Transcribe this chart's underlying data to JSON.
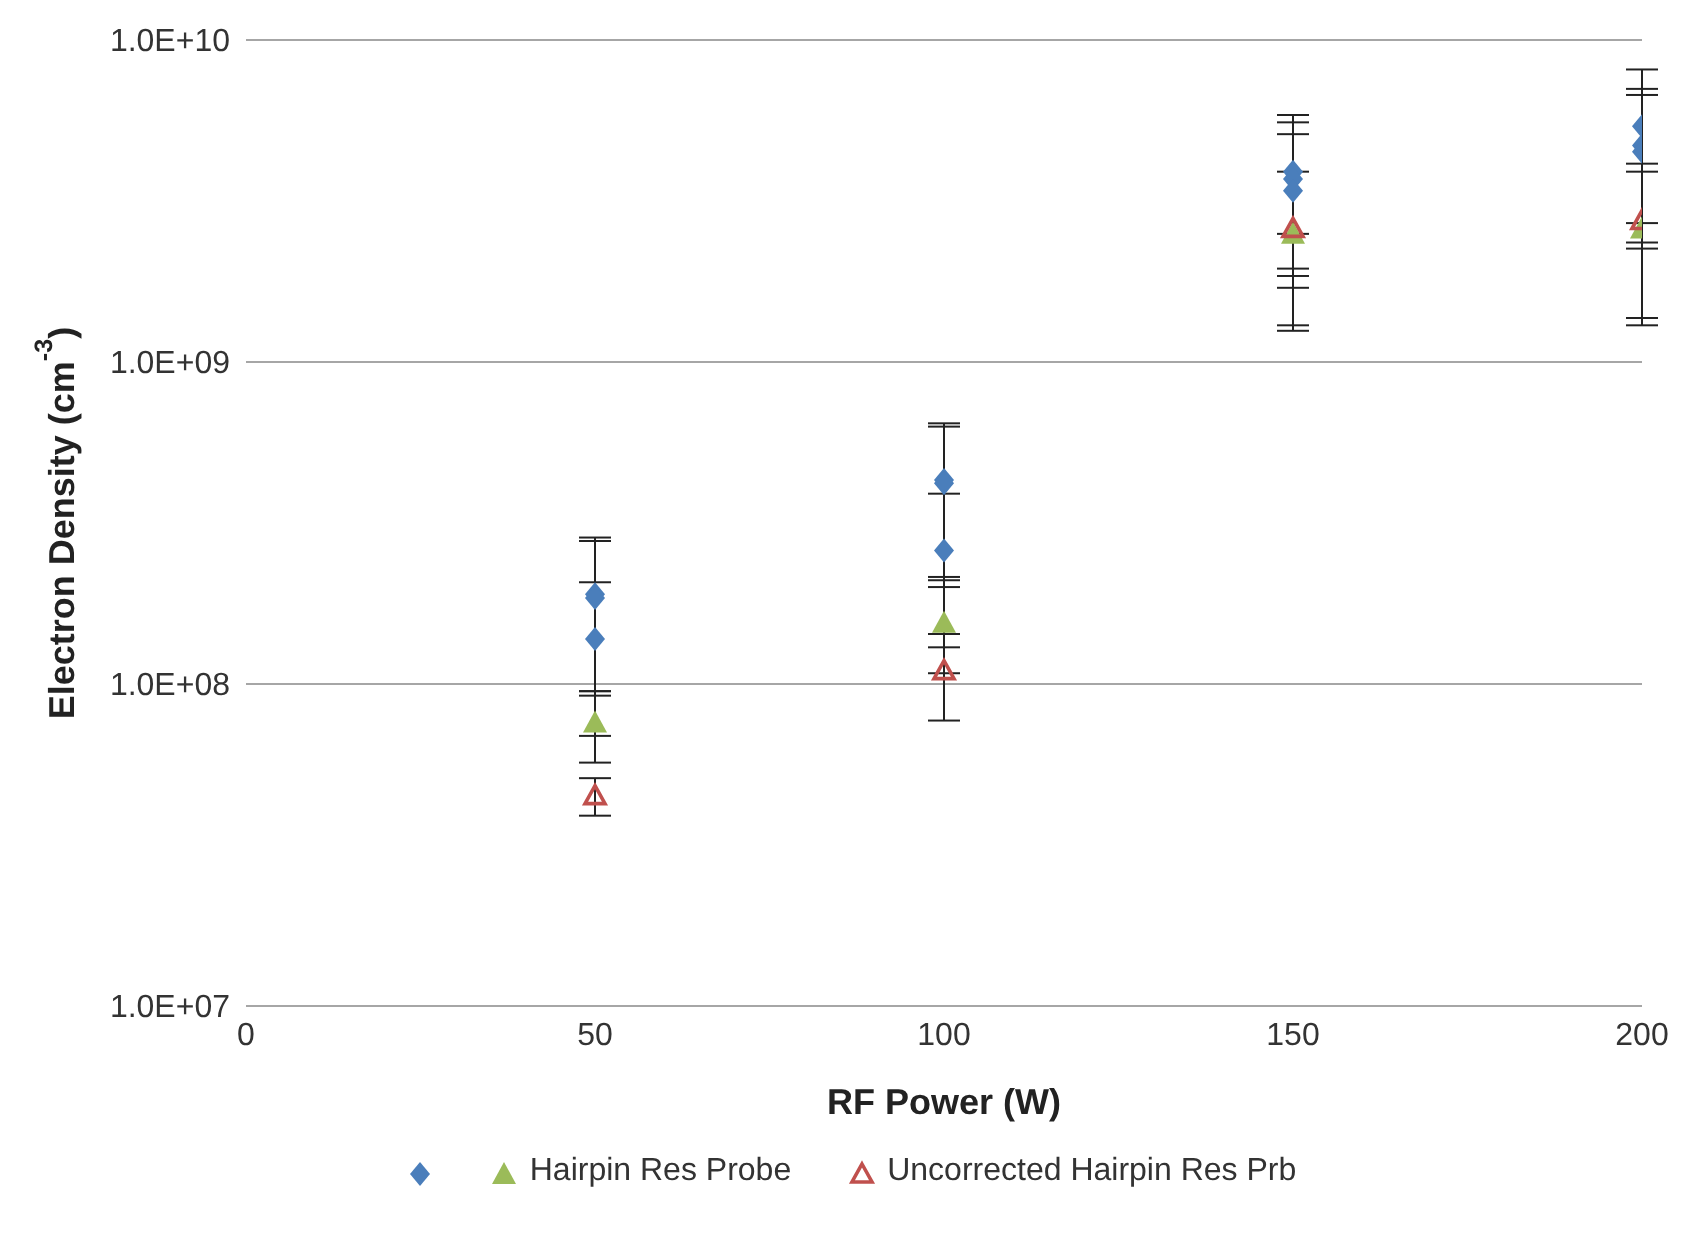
{
  "chart_data": {
    "type": "scatter",
    "xlabel": "RF Power (W)",
    "ylabel": "Electron Density (cm$^{-3}$)",
    "log": "y",
    "xlim": [
      0,
      200
    ],
    "xticks": [
      0,
      50,
      100,
      150,
      200
    ],
    "ylim": [
      10000000,
      10000000000
    ],
    "yticks": [
      {
        "value": 10000000,
        "label": "1.0E+07"
      },
      {
        "value": 100000000,
        "label": "1.0E+08"
      },
      {
        "value": 1000000000,
        "label": "1.0E+09"
      },
      {
        "value": 10000000000,
        "label": "1.0E+10"
      }
    ],
    "grid": "y",
    "legend": "bottom",
    "series": [
      {
        "color": "#4a7ebb",
        "marker": "diamond",
        "x": [
          50,
          50,
          50,
          100,
          100,
          100,
          150,
          150,
          150,
          200,
          200,
          200
        ],
        "values": [
          190000000,
          185000000,
          138000000,
          430000000,
          420000000,
          260000000,
          3900000000,
          3700000000,
          3400000000,
          5400000000,
          4700000000,
          4500000000
        ],
        "errors": [
          [
            95000000,
            285000000
          ],
          [
            92000000,
            278000000
          ],
          [
            69000000,
            207000000
          ],
          [
            215000000,
            645000000
          ],
          [
            210000000,
            630000000
          ],
          [
            130000000,
            390000000
          ],
          [
            1950000000,
            5850000000
          ],
          [
            1850000000,
            5550000000
          ],
          [
            1700000000,
            5100000000
          ],
          [
            2700000000,
            8100000000
          ],
          [
            2350000000,
            7050000000
          ],
          [
            2250000000,
            6750000000
          ]
        ]
      },
      {
        "name": "Hairpin Res Probe",
        "color": "#9bbb59",
        "marker": "triangle",
        "x": [
          50,
          100,
          150,
          200
        ],
        "values": [
          76000000,
          155000000,
          2500000000,
          2600000000
        ],
        "errors": [
          [
            57000000,
            95000000
          ],
          [
            108000000,
            200000000
          ],
          [
            1250000000,
            2500000000
          ],
          [
            1300000000,
            3900000000
          ]
        ]
      },
      {
        "name": "Uncorrected Hairpin Res Prb",
        "color": "#c0504d",
        "marker": "triangle-open",
        "x": [
          50,
          100,
          150,
          200
        ],
        "values": [
          45000000,
          110000000,
          2600000000,
          2750000000
        ],
        "errors": [
          [
            39000000,
            51000000
          ],
          [
            77000000,
            143000000
          ],
          [
            1300000000,
            3900000000
          ],
          [
            1370000000,
            4130000000
          ]
        ]
      }
    ]
  }
}
